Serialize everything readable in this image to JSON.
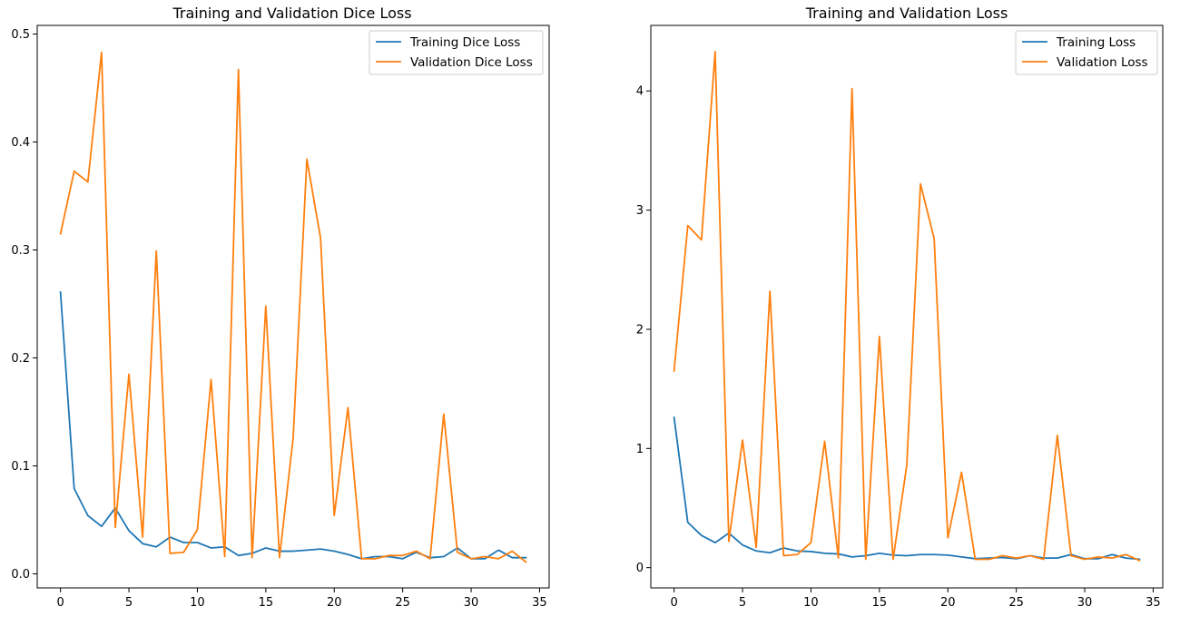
{
  "chart_data": [
    {
      "type": "line",
      "title": "Training and Validation Dice Loss",
      "xlabel": "",
      "ylabel": "",
      "xlim": [
        -1.7,
        35.7
      ],
      "ylim": [
        -0.013,
        0.508
      ],
      "xticks": [
        0,
        5,
        10,
        15,
        20,
        25,
        30,
        35
      ],
      "yticks": [
        0.0,
        0.1,
        0.2,
        0.3,
        0.4,
        0.5
      ],
      "ytick_labels": [
        "0.0",
        "0.1",
        "0.2",
        "0.3",
        "0.4",
        "0.5"
      ],
      "grid": false,
      "legend_position": "upper right",
      "x": [
        0,
        1,
        2,
        3,
        4,
        5,
        6,
        7,
        8,
        9,
        10,
        11,
        12,
        13,
        14,
        15,
        16,
        17,
        18,
        19,
        20,
        21,
        22,
        23,
        24,
        25,
        26,
        27,
        28,
        29,
        30,
        31,
        32,
        33,
        34
      ],
      "series": [
        {
          "name": "Training Dice Loss",
          "color": "#1f77b4",
          "values": [
            0.261,
            0.079,
            0.054,
            0.044,
            0.061,
            0.04,
            0.028,
            0.025,
            0.034,
            0.029,
            0.029,
            0.024,
            0.025,
            0.017,
            0.019,
            0.024,
            0.021,
            0.021,
            0.022,
            0.023,
            0.021,
            0.018,
            0.014,
            0.016,
            0.016,
            0.014,
            0.02,
            0.015,
            0.016,
            0.024,
            0.014,
            0.014,
            0.022,
            0.015,
            0.015
          ]
        },
        {
          "name": "Validation Dice Loss",
          "color": "#ff7f0e",
          "values": [
            0.315,
            0.373,
            0.363,
            0.483,
            0.043,
            0.185,
            0.034,
            0.299,
            0.019,
            0.02,
            0.041,
            0.18,
            0.016,
            0.467,
            0.015,
            0.248,
            0.015,
            0.126,
            0.384,
            0.311,
            0.054,
            0.154,
            0.014,
            0.014,
            0.017,
            0.017,
            0.021,
            0.014,
            0.148,
            0.02,
            0.014,
            0.016,
            0.014,
            0.021,
            0.011
          ]
        }
      ]
    },
    {
      "type": "line",
      "title": "Training and Validation Loss",
      "xlabel": "",
      "ylabel": "",
      "xlim": [
        -1.7,
        35.7
      ],
      "ylim": [
        -0.17,
        4.55
      ],
      "xticks": [
        0,
        5,
        10,
        15,
        20,
        25,
        30,
        35
      ],
      "yticks": [
        0,
        1,
        2,
        3,
        4
      ],
      "ytick_labels": [
        "0",
        "1",
        "2",
        "3",
        "4"
      ],
      "grid": false,
      "legend_position": "upper right",
      "x": [
        0,
        1,
        2,
        3,
        4,
        5,
        6,
        7,
        8,
        9,
        10,
        11,
        12,
        13,
        14,
        15,
        16,
        17,
        18,
        19,
        20,
        21,
        22,
        23,
        24,
        25,
        26,
        27,
        28,
        29,
        30,
        31,
        32,
        33,
        34
      ],
      "series": [
        {
          "name": "Training Loss",
          "color": "#1f77b4",
          "values": [
            1.26,
            0.38,
            0.27,
            0.21,
            0.29,
            0.19,
            0.14,
            0.125,
            0.165,
            0.14,
            0.135,
            0.12,
            0.115,
            0.09,
            0.1,
            0.12,
            0.105,
            0.1,
            0.11,
            0.11,
            0.105,
            0.09,
            0.075,
            0.08,
            0.085,
            0.075,
            0.1,
            0.08,
            0.08,
            0.11,
            0.075,
            0.075,
            0.11,
            0.08,
            0.07
          ]
        },
        {
          "name": "Validation Loss",
          "color": "#ff7f0e",
          "values": [
            1.65,
            2.87,
            2.75,
            4.33,
            0.22,
            1.07,
            0.17,
            2.32,
            0.1,
            0.11,
            0.21,
            1.06,
            0.08,
            4.02,
            0.07,
            1.94,
            0.07,
            0.86,
            3.22,
            2.76,
            0.25,
            0.8,
            0.07,
            0.07,
            0.1,
            0.08,
            0.1,
            0.07,
            1.11,
            0.1,
            0.07,
            0.09,
            0.08,
            0.11,
            0.06
          ]
        }
      ]
    }
  ]
}
